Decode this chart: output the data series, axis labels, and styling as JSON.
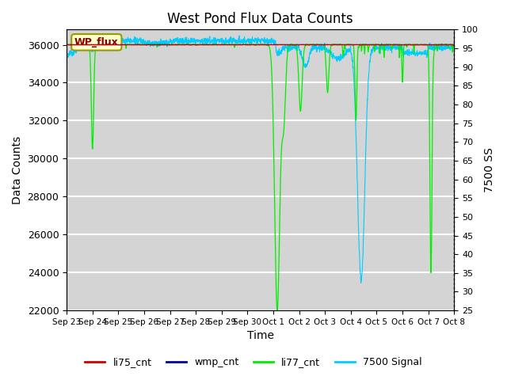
{
  "title": "West Pond Flux Data Counts",
  "xlabel": "Time",
  "ylabel_left": "Data Counts",
  "ylabel_right": "7500 SS",
  "ylim_left": [
    22000,
    36800
  ],
  "ylim_right": [
    25,
    100
  ],
  "yticks_left": [
    22000,
    24000,
    26000,
    28000,
    30000,
    32000,
    34000,
    36000
  ],
  "yticks_right": [
    25,
    30,
    35,
    40,
    45,
    50,
    55,
    60,
    65,
    70,
    75,
    80,
    85,
    90,
    95,
    100
  ],
  "xtick_labels": [
    "Sep 23",
    "Sep 24",
    "Sep 25",
    "Sep 26",
    "Sep 27",
    "Sep 28",
    "Sep 29",
    "Sep 30",
    "Oct 1",
    "Oct 2",
    "Oct 3",
    "Oct 4",
    "Oct 5",
    "Oct 6",
    "Oct 7",
    "Oct 8"
  ],
  "annotation_text": "WP_flux",
  "li75_color": "#cc0000",
  "wmp_color": "#000099",
  "li77_color": "#00ee00",
  "signal_color": "#00ccff",
  "legend_entries": [
    "li75_cnt",
    "wmp_cnt",
    "li77_cnt",
    "7500 Signal"
  ],
  "bg_light": "#d8d8d8",
  "bg_dark": "#c8c8c8",
  "n_points": 2000
}
